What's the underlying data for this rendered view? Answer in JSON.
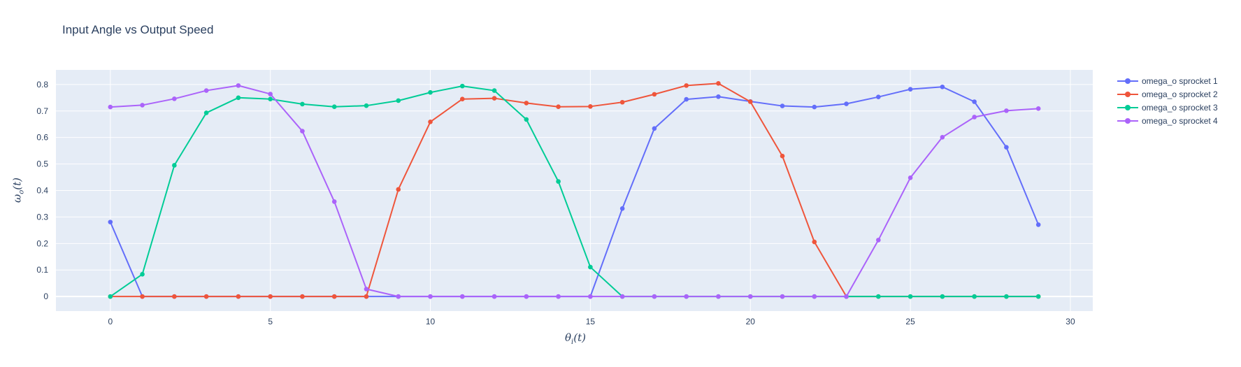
{
  "chart_data": {
    "type": "line",
    "title": "Input Angle vs Output Speed",
    "xlabel": "θ_i(t)",
    "ylabel": "ω_o(t)",
    "xlim": [
      -1.7,
      30.7
    ],
    "ylim": [
      -0.055,
      0.855
    ],
    "x_ticks": [
      0,
      5,
      10,
      15,
      20,
      25,
      30
    ],
    "y_ticks": [
      0,
      0.1,
      0.2,
      0.3,
      0.4,
      0.5,
      0.6,
      0.7,
      0.8
    ],
    "y_tick_labels": [
      "0",
      "0.1",
      "0.2",
      "0.3",
      "0.4",
      "0.5",
      "0.6",
      "0.7",
      "0.8"
    ],
    "grid": true,
    "legend_position": "right-top",
    "mode": "lines+markers",
    "x": [
      0,
      1,
      2,
      3,
      4,
      5,
      6,
      7,
      8,
      9,
      10,
      11,
      12,
      13,
      14,
      15,
      16,
      17,
      18,
      19,
      20,
      21,
      22,
      23,
      24,
      25,
      26,
      27,
      28,
      29
    ],
    "series": [
      {
        "name": "omega_o sprocket 1",
        "color": "#636efa",
        "values": [
          0.281,
          0,
          0,
          0,
          0,
          0,
          0,
          0,
          0,
          0,
          0,
          0,
          0,
          0,
          0,
          0,
          0.332,
          0.634,
          0.744,
          0.754,
          0.736,
          0.719,
          0.715,
          0.727,
          0.753,
          0.782,
          0.791,
          0.735,
          0.563,
          0.271
        ]
      },
      {
        "name": "omega_o sprocket 2",
        "color": "#ef553b",
        "values": [
          0,
          0,
          0,
          0,
          0,
          0,
          0,
          0,
          0,
          0.404,
          0.659,
          0.745,
          0.748,
          0.73,
          0.716,
          0.717,
          0.733,
          0.763,
          0.796,
          0.804,
          0.735,
          0.53,
          0.206,
          0,
          0,
          0,
          0,
          0,
          0,
          0
        ]
      },
      {
        "name": "omega_o sprocket 3",
        "color": "#00cc96",
        "values": [
          0,
          0.084,
          0.495,
          0.693,
          0.75,
          0.745,
          0.726,
          0.716,
          0.72,
          0.739,
          0.77,
          0.794,
          0.777,
          0.668,
          0.434,
          0.111,
          0,
          0,
          0,
          0,
          0,
          0,
          0,
          0,
          0,
          0,
          0,
          0,
          0,
          0
        ]
      },
      {
        "name": "omega_o sprocket 4",
        "color": "#ab63fa",
        "values": [
          0.715,
          0.722,
          0.746,
          0.777,
          0.796,
          0.764,
          0.624,
          0.358,
          0.028,
          0,
          0,
          0,
          0,
          0,
          0,
          0,
          0,
          0,
          0,
          0,
          0,
          0,
          0,
          0,
          0.213,
          0.448,
          0.601,
          0.677,
          0.701,
          0.709
        ]
      }
    ]
  },
  "theme": {
    "plot_bg": "#e5ecf6",
    "paper_bg": "#ffffff",
    "grid_color": "#ffffff",
    "text_color": "#2a3f5f"
  },
  "labels": {
    "title": "Input Angle vs Output Speed",
    "x_axis_symbol": "θ",
    "x_axis_sub": "i",
    "x_axis_arg": "(t)",
    "y_axis_symbol": "ω",
    "y_axis_sub": "o",
    "y_axis_arg": "(t)"
  },
  "legend": {
    "items": [
      {
        "label": "omega_o sprocket 1",
        "color": "#636efa"
      },
      {
        "label": "omega_o sprocket 2",
        "color": "#ef553b"
      },
      {
        "label": "omega_o sprocket 3",
        "color": "#00cc96"
      },
      {
        "label": "omega_o sprocket 4",
        "color": "#ab63fa"
      }
    ]
  }
}
